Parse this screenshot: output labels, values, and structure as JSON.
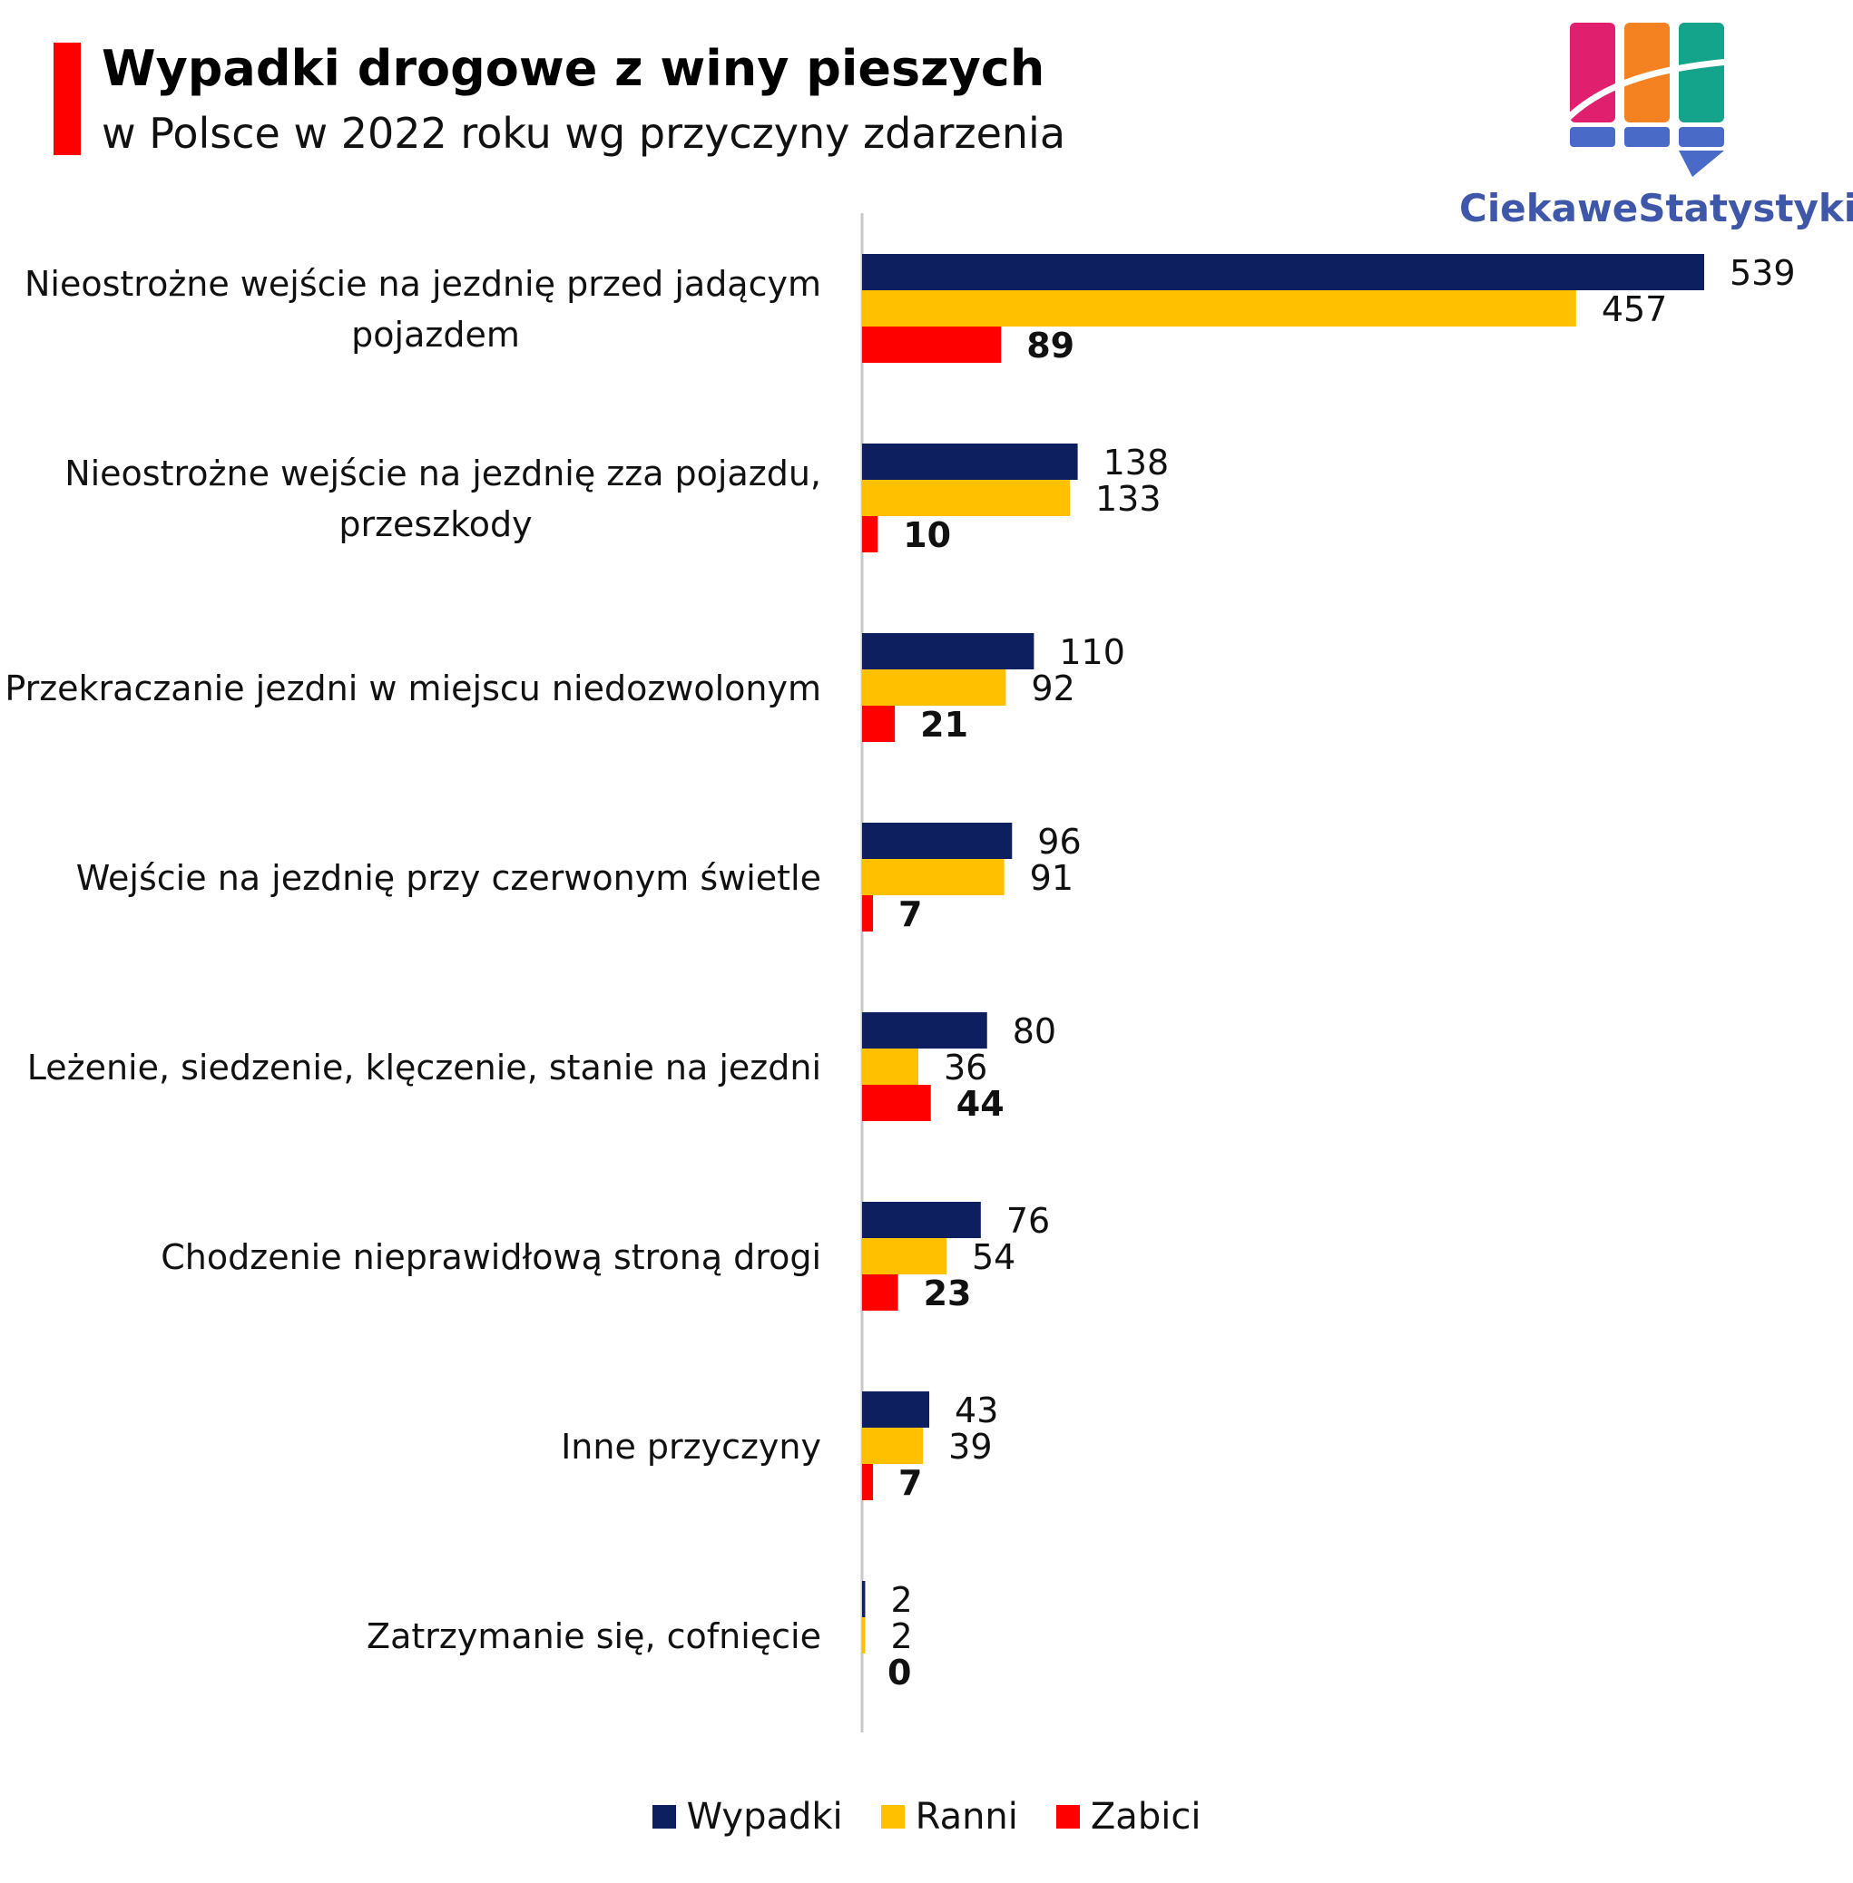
{
  "title": "Wypadki drogowe z winy pieszych",
  "subtitle": "w Polsce w 2022 roku wg przyczyny zdarzenia",
  "brand": "CiekaweStatystyki.pl",
  "colors": {
    "wypadki": "#0d1f5f",
    "ranni": "#ffc000",
    "zabici": "#ff0000",
    "axis": "#c8c8c8",
    "logo_pink": "#e0206f",
    "logo_orange": "#f58220",
    "logo_teal": "#14a38b",
    "logo_blue": "#4a6ac8"
  },
  "chart_data": {
    "type": "bar",
    "orientation": "horizontal",
    "categories": [
      [
        "Nieostrożne wejście na jezdnię przed jadącym",
        "pojazdem"
      ],
      [
        "Nieostrożne wejście na jezdnię zza pojazdu,",
        "przeszkody"
      ],
      [
        "Przekraczanie jezdni w miejscu niedozwolonym"
      ],
      [
        "Wejście na jezdnię przy czerwonym świetle"
      ],
      [
        "Leżenie, siedzenie, klęczenie, stanie na jezdni"
      ],
      [
        "Chodzenie nieprawidłową stroną drogi"
      ],
      [
        "Inne przyczyny"
      ],
      [
        "Zatrzymanie się, cofnięcie"
      ]
    ],
    "series": [
      {
        "name": "Wypadki",
        "color": "#0d1f5f",
        "values": [
          539,
          138,
          110,
          96,
          80,
          76,
          43,
          2
        ]
      },
      {
        "name": "Ranni",
        "color": "#ffc000",
        "values": [
          457,
          133,
          92,
          91,
          36,
          54,
          39,
          2
        ]
      },
      {
        "name": "Zabici",
        "color": "#ff0000",
        "values": [
          89,
          10,
          21,
          7,
          44,
          23,
          7,
          0
        ]
      }
    ],
    "xlim": [
      0,
      539
    ],
    "legend_position": "bottom",
    "grid": false
  }
}
